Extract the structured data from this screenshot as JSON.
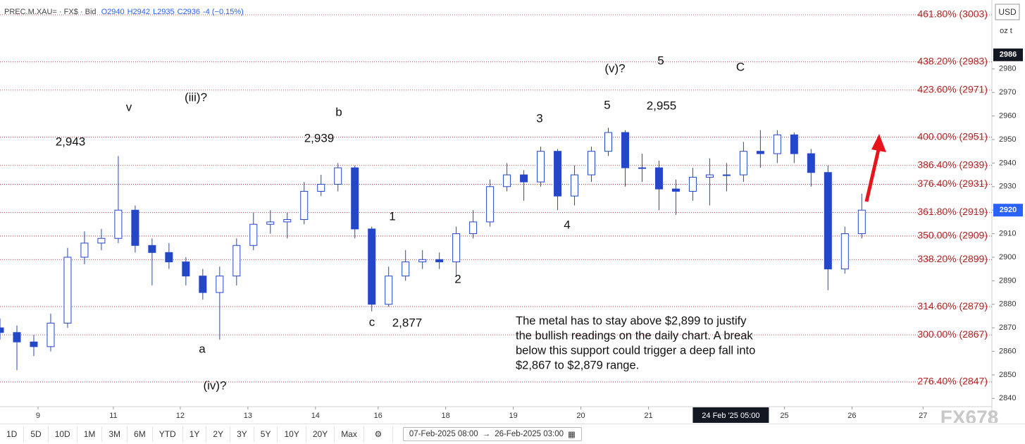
{
  "chart_data": {
    "type": "candlestick",
    "symbol": "PREC.M.XAU= · FX$ · Bid",
    "ohlc_header": [
      "O2940",
      "H2942",
      "L2935",
      "C2936",
      "-4 (−0.15%)"
    ],
    "currency": "USD",
    "unit": "oz t",
    "up_color": "#ffffff",
    "down_color": "#2447c8",
    "outline_color": "#2447c8",
    "open": [
      2870,
      2868,
      2864,
      2862,
      2872,
      2900,
      2906,
      2908,
      2920,
      2905,
      2902,
      2898,
      2892,
      2885,
      2892,
      2905,
      2914,
      2915,
      2916,
      2928,
      2931,
      2938,
      2912,
      2880,
      2892,
      2898,
      2899,
      2898,
      2910,
      2915,
      2930,
      2935,
      2932,
      2945,
      2926,
      2935,
      2945,
      2953,
      2938,
      2938,
      2929,
      2928,
      2934,
      2935,
      2935,
      2945,
      2944,
      2952,
      2944,
      2936,
      2895,
      2910
    ],
    "high": [
      2874,
      2871,
      2867,
      2876,
      2904,
      2911,
      2912,
      2943,
      2922,
      2908,
      2906,
      2900,
      2895,
      2896,
      2908,
      2919,
      2920,
      2919,
      2932,
      2935,
      2940,
      2939,
      2913,
      2896,
      2903,
      2903,
      2902,
      2913,
      2920,
      2933,
      2940,
      2937,
      2947,
      2946,
      2939,
      2947,
      2955,
      2954,
      2944,
      2941,
      2933,
      2938,
      2942,
      2940,
      2949,
      2954,
      2954,
      2953,
      2946,
      2939,
      2913,
      2927
    ],
    "low": [
      2865,
      2852,
      2858,
      2860,
      2870,
      2897,
      2903,
      2906,
      2902,
      2888,
      2895,
      2888,
      2882,
      2865,
      2888,
      2903,
      2910,
      2908,
      2914,
      2926,
      2928,
      2908,
      2877,
      2879,
      2890,
      2895,
      2895,
      2892,
      2908,
      2913,
      2928,
      2924,
      2930,
      2920,
      2922,
      2932,
      2943,
      2930,
      2932,
      2920,
      2918,
      2924,
      2922,
      2928,
      2932,
      2938,
      2940,
      2940,
      2930,
      2886,
      2893,
      2908
    ],
    "close": [
      2868,
      2864,
      2862,
      2872,
      2900,
      2906,
      2908,
      2920,
      2905,
      2902,
      2898,
      2892,
      2885,
      2892,
      2905,
      2914,
      2915,
      2916,
      2928,
      2931,
      2938,
      2912,
      2880,
      2892,
      2898,
      2899,
      2898,
      2910,
      2915,
      2930,
      2935,
      2932,
      2945,
      2926,
      2935,
      2945,
      2953,
      2938,
      2938,
      2929,
      2928,
      2934,
      2935,
      2935,
      2945,
      2944,
      2952,
      2944,
      2936,
      2895,
      2910,
      2920
    ],
    "xlim": [
      0,
      58.7
    ],
    "xticks": [
      {
        "value": 2.25,
        "label": "9"
      },
      {
        "value": 6.71,
        "label": "11"
      },
      {
        "value": 10.67,
        "label": "12"
      },
      {
        "value": 14.67,
        "label": "13"
      },
      {
        "value": 18.67,
        "label": "14"
      },
      {
        "value": 22.375,
        "label": "16"
      },
      {
        "value": 26.375,
        "label": "18"
      },
      {
        "value": 30.375,
        "label": "19"
      },
      {
        "value": 34.375,
        "label": "20"
      },
      {
        "value": 38.375,
        "label": "21"
      },
      {
        "value": 46.42,
        "label": "25"
      },
      {
        "value": 50.42,
        "label": "26"
      },
      {
        "value": 54.625,
        "label": "27"
      }
    ],
    "crosshair": {
      "value": 43.25,
      "label": "24 Feb '25  05:00"
    },
    "ylim": [
      2836.5,
      3009.3
    ],
    "yticks": [
      2840,
      2850,
      2860,
      2870,
      2880,
      2890,
      2900,
      2910,
      2920,
      2930,
      2940,
      2950,
      2960,
      2970,
      2980
    ],
    "grid": false,
    "price_tags": [
      {
        "value": 2986,
        "color": "#131722"
      },
      {
        "value": 2920,
        "color": "#2962ff"
      }
    ],
    "fib_color": "#b22222",
    "fib_levels": [
      {
        "value": 3003,
        "label": "461.80% (3003)"
      },
      {
        "value": 2983,
        "label": "438.20% (2983)"
      },
      {
        "value": 2971,
        "label": "423.60% (2971)"
      },
      {
        "value": 2951,
        "label": "400.00% (2951)"
      },
      {
        "value": 2939,
        "label": "386.40% (2939)"
      },
      {
        "value": 2931,
        "label": "376.40% (2931)"
      },
      {
        "value": 2919,
        "label": "361.80% (2919)"
      },
      {
        "value": 2909,
        "label": "350.00% (2909)"
      },
      {
        "value": 2899,
        "label": "338.20% (2899)"
      },
      {
        "value": 2879,
        "label": "314.60% (2879)"
      },
      {
        "value": 2867,
        "label": "300.00% (2867)"
      },
      {
        "value": 2847,
        "label": "276.40% (2847)"
      }
    ],
    "annotations": [
      "v",
      "(iii)?",
      "2,943",
      "b",
      "2,939",
      "3",
      "(v)?",
      "5",
      "C",
      "5",
      "2,955",
      "1",
      "4",
      "2",
      "a",
      "(iv)?",
      "c",
      "2,877"
    ],
    "note": [
      "The metal has to stay above $2,899 to justify",
      "the bullish readings on the daily chart. A break",
      "below this support could trigger a deep fall into",
      "$2,867 to $2,879 range."
    ],
    "watermark": "FX678"
  },
  "toolbar": {
    "buttons": [
      "1D",
      "5D",
      "10D",
      "1M",
      "3M",
      "6M",
      "YTD",
      "1Y",
      "2Y",
      "3Y",
      "5Y",
      "10Y",
      "20Y",
      "Max"
    ],
    "range_from": "07-Feb-2025 08:00",
    "range_to": "26-Feb-2025 03:00"
  }
}
